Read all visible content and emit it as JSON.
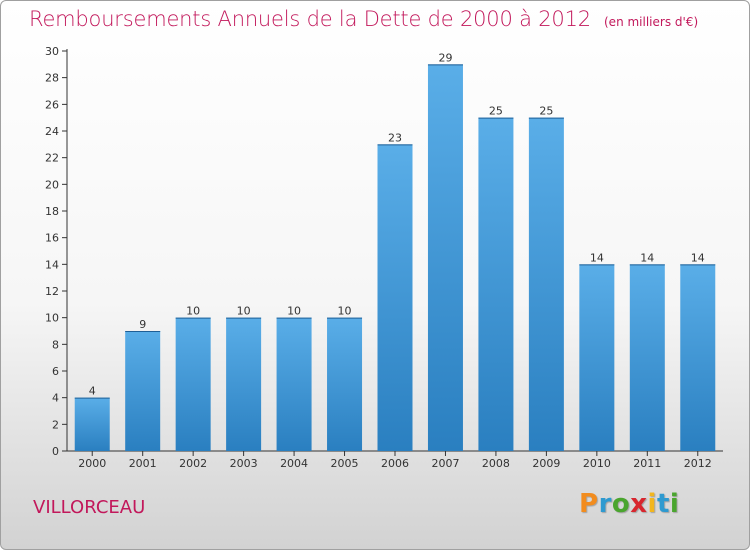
{
  "header": {
    "title": "Remboursements Annuels de la Dette de 2000 à 2012",
    "unit": "(en milliers d'€)"
  },
  "footer": {
    "commune": "VILLORCEAU",
    "logo": {
      "letters": [
        "P",
        "r",
        "o",
        "x",
        "i",
        "t",
        "i"
      ],
      "colors": [
        "#f28c1e",
        "#2e9ad0",
        "#4aa52e",
        "#d8262e",
        "#f2b61e",
        "#2e9ad0",
        "#4aa52e"
      ]
    }
  },
  "colors": {
    "bar_light": "#5aaee8",
    "bar_dark": "#2a7fc0",
    "axis": "#333333",
    "title": "#c2185b"
  },
  "chart_data": {
    "type": "bar",
    "categories": [
      "2000",
      "2001",
      "2002",
      "2003",
      "2004",
      "2005",
      "2006",
      "2007",
      "2008",
      "2009",
      "2010",
      "2011",
      "2012"
    ],
    "values": [
      4,
      9,
      10,
      10,
      10,
      10,
      23,
      29,
      25,
      25,
      14,
      14,
      14
    ],
    "ylim": [
      0,
      30
    ],
    "yticks": [
      0,
      2,
      4,
      6,
      8,
      10,
      12,
      14,
      16,
      18,
      20,
      22,
      24,
      26,
      28,
      30
    ],
    "grid": false,
    "data_labels": true
  }
}
